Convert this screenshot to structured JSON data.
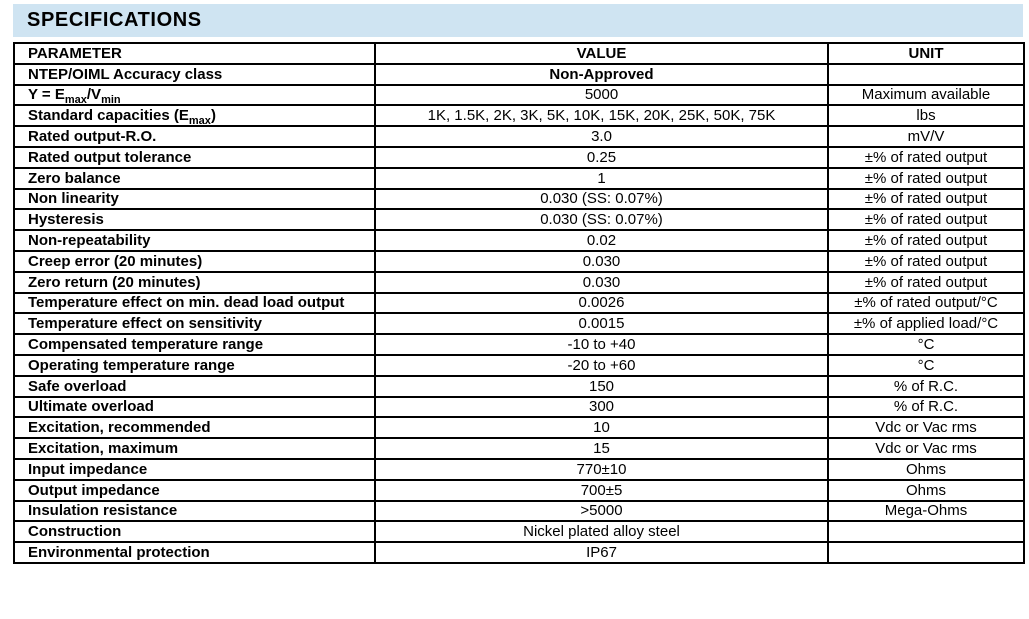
{
  "title": "SPECIFICATIONS",
  "colors": {
    "title_bar_bg": "#cfe4f2",
    "table_border": "#000000",
    "text": "#000000",
    "page_bg": "#ffffff"
  },
  "table": {
    "headers": [
      "PARAMETER",
      "VALUE",
      "UNIT"
    ],
    "subscript_note": "pipe-delimited segments: odd segments render as subscript",
    "rows": [
      {
        "parameter": "NTEP/OIML Accuracy class",
        "value": "Non-Approved",
        "value_bold": true,
        "unit": ""
      },
      {
        "parameter": "Y = E|max|/V|min|",
        "value": "5000",
        "unit": "Maximum available"
      },
      {
        "parameter": "Standard capacities (E|max|)",
        "value": "1K, 1.5K, 2K, 3K, 5K, 10K, 15K, 20K, 25K, 50K, 75K",
        "unit": "lbs"
      },
      {
        "parameter": "Rated output-R.O.",
        "value": "3.0",
        "unit": "mV/V"
      },
      {
        "parameter": "Rated output tolerance",
        "value": "0.25",
        "unit": "±% of rated output"
      },
      {
        "parameter": "Zero balance",
        "value": "1",
        "unit": "±% of rated output"
      },
      {
        "parameter": "Non linearity",
        "value": "0.030 (SS: 0.07%)",
        "unit": "±% of rated output"
      },
      {
        "parameter": "Hysteresis",
        "value": "0.030 (SS: 0.07%)",
        "unit": "±% of rated output"
      },
      {
        "parameter": "Non-repeatability",
        "value": "0.02",
        "unit": "±% of rated output"
      },
      {
        "parameter": "Creep error (20 minutes)",
        "value": "0.030",
        "unit": "±% of rated output"
      },
      {
        "parameter": "Zero return (20 minutes)",
        "value": "0.030",
        "unit": "±% of rated output"
      },
      {
        "parameter": "Temperature effect on min. dead load output",
        "value": "0.0026",
        "unit": "±% of rated output/°C"
      },
      {
        "parameter": "Temperature effect on sensitivity",
        "value": "0.0015",
        "unit": "±% of applied load/°C"
      },
      {
        "parameter": "Compensated temperature range",
        "value": "-10 to +40",
        "unit": "°C"
      },
      {
        "parameter": "Operating temperature range",
        "value": "-20 to +60",
        "unit": "°C"
      },
      {
        "parameter": "Safe overload",
        "value": "150",
        "unit": "% of R.C."
      },
      {
        "parameter": "Ultimate overload",
        "value": "300",
        "unit": "% of R.C."
      },
      {
        "parameter": "Excitation, recommended",
        "value": "10",
        "unit": "Vdc or Vac rms"
      },
      {
        "parameter": "Excitation, maximum",
        "value": "15",
        "unit": "Vdc or Vac rms"
      },
      {
        "parameter": "Input impedance",
        "value": "770±10",
        "unit": "Ohms"
      },
      {
        "parameter": "Output impedance",
        "value": "700±5",
        "unit": "Ohms"
      },
      {
        "parameter": "Insulation resistance",
        "value": ">5000",
        "unit": "Mega-Ohms"
      },
      {
        "parameter": "Construction",
        "value": "Nickel plated alloy steel",
        "unit": ""
      },
      {
        "parameter": "Environmental protection",
        "value": "IP67",
        "unit": ""
      }
    ]
  }
}
